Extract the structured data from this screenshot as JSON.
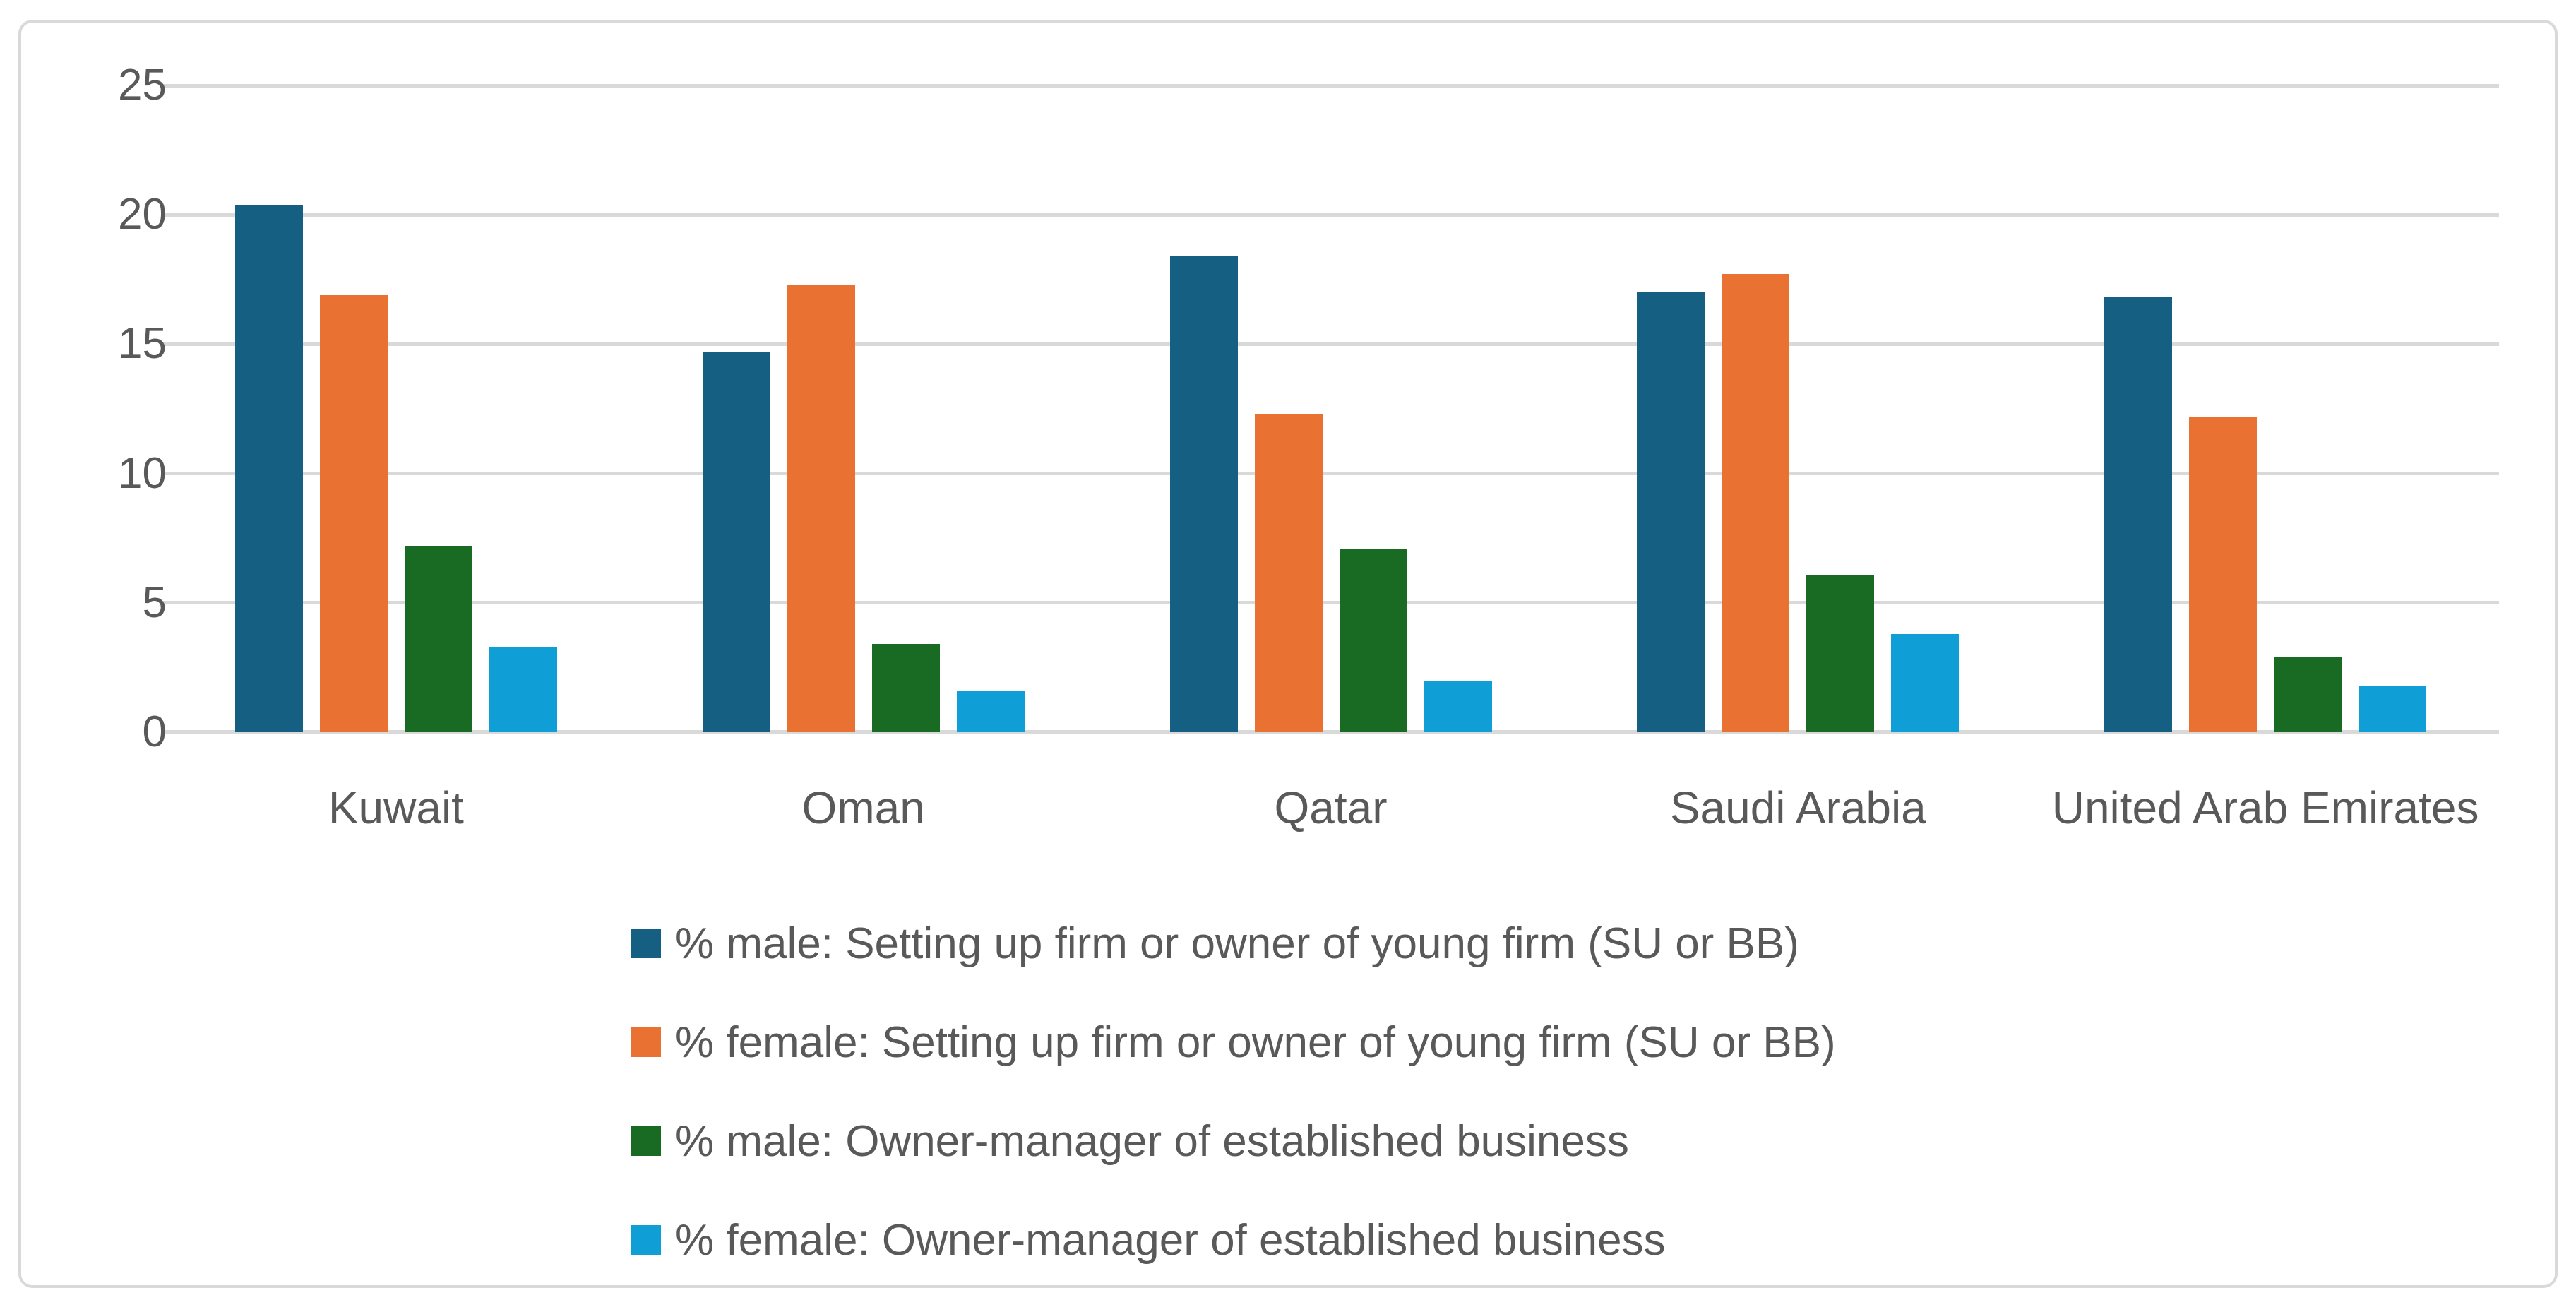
{
  "chart_data": {
    "type": "bar",
    "title": "",
    "categories": [
      "Kuwait",
      "Oman",
      "Qatar",
      "Saudi Arabia",
      "United Arab Emirates"
    ],
    "series": [
      {
        "name": "% male: Setting up firm or owner of young firm (SU or BB)",
        "color": "#156082",
        "values": [
          20.4,
          14.7,
          18.4,
          17.0,
          16.8
        ]
      },
      {
        "name": "% female: Setting up firm or owner of young firm (SU or BB)",
        "color": "#E97132",
        "values": [
          16.9,
          17.3,
          12.3,
          17.7,
          12.2
        ]
      },
      {
        "name": "% male: Owner-manager of established business",
        "color": "#196B24",
        "values": [
          7.2,
          3.4,
          7.1,
          6.1,
          2.9
        ]
      },
      {
        "name": "% female: Owner-manager of established business",
        "color": "#0F9ED5",
        "values": [
          3.3,
          1.6,
          2.0,
          3.8,
          1.8
        ]
      }
    ],
    "y_axis": {
      "min": 0,
      "max": 25,
      "tick_labels": [
        "0",
        "5",
        "10",
        "15",
        "20",
        "25"
      ],
      "tick_values": [
        0,
        5,
        10,
        15,
        20,
        25
      ]
    },
    "grid": true,
    "legend_position": "bottom-left",
    "colors": {
      "gridline": "#d9d9d9",
      "frame_border": "#d9d9d9",
      "axis_text": "#595959",
      "background": "#ffffff"
    }
  }
}
